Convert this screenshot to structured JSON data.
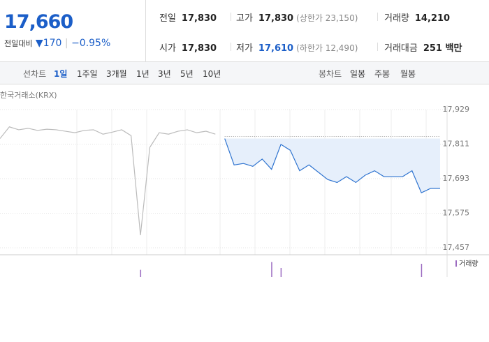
{
  "header": {
    "price": "17,660",
    "change_label": "전일대비",
    "change": "170",
    "change_rate": "−0.95%"
  },
  "stats": [
    {
      "label": "전일",
      "value": "17,830"
    },
    {
      "label": "고가",
      "value": "17,830",
      "note": "(상한가 23,150)"
    },
    {
      "label": "거래량",
      "value": "14,210"
    },
    {
      "label": "시가",
      "value": "17,830"
    },
    {
      "label": "저가",
      "value": "17,610",
      "note": "(하한가 12,490)"
    },
    {
      "label": "거래대금",
      "value": "251 백만"
    }
  ],
  "tabs": {
    "line_label": "선차트",
    "line": [
      "1일",
      "1주일",
      "3개월",
      "1년",
      "3년",
      "5년",
      "10년"
    ],
    "candle_label": "봉차트",
    "candle": [
      "일봉",
      "주봉",
      "월봉"
    ]
  },
  "chart_data": {
    "type": "line",
    "source": "한국거래소(KRX)",
    "categories": [
      null,
      null,
      null,
      null,
      null,
      null,
      null,
      null,
      null,
      null,
      null,
      null,
      null,
      null,
      null,
      null,
      null,
      null,
      null,
      null,
      null,
      null,
      null,
      null,
      null,
      null,
      null,
      null,
      null,
      null,
      null,
      null,
      null,
      null,
      null,
      null,
      null,
      null,
      null,
      null,
      null,
      null,
      null,
      null,
      null,
      null,
      null,
      null
    ],
    "series": [
      {
        "color": "#bbbbbb",
        "values": [
          17830,
          17870,
          17860,
          17865,
          17858,
          17862,
          17860,
          17855,
          17850,
          17858,
          17860,
          17845,
          17852,
          17860,
          17840,
          17500,
          17800,
          17850,
          17845,
          17855,
          17860,
          17850,
          17855,
          17845,
          null,
          null,
          null,
          null,
          null,
          null,
          null,
          null,
          null,
          null,
          null,
          null,
          null,
          null,
          null,
          null,
          null,
          null,
          null,
          null,
          null,
          null,
          null,
          null
        ]
      },
      {
        "color": "#2f74d0",
        "values": [
          null,
          null,
          null,
          null,
          null,
          null,
          null,
          null,
          null,
          null,
          null,
          null,
          null,
          null,
          null,
          null,
          null,
          null,
          null,
          null,
          null,
          null,
          null,
          null,
          17830,
          17740,
          17745,
          17735,
          17760,
          17725,
          17810,
          17790,
          17720,
          17740,
          17715,
          17690,
          17680,
          17700,
          17680,
          17705,
          17720,
          17700,
          17700,
          17700,
          17720,
          17645,
          17660,
          17660
        ]
      }
    ],
    "volume": {
      "name": "거래량",
      "color": "#9b6bc0",
      "ylim": [
        0,
        30
      ],
      "values": [
        0,
        0,
        0,
        0,
        0,
        0,
        0,
        0,
        0,
        0,
        0,
        0,
        0,
        0,
        0,
        12,
        0,
        0,
        0,
        0,
        0,
        0,
        0,
        0,
        0,
        0,
        0,
        0,
        0,
        25,
        15,
        0,
        0,
        0,
        0,
        0,
        0,
        0,
        0,
        0,
        0,
        0,
        0,
        0,
        0,
        22,
        0,
        0
      ]
    },
    "ylim": [
      17457,
      17929
    ],
    "yticks": [
      {
        "value": 17929,
        "label": "17,929"
      },
      {
        "value": 17811,
        "label": "17,811"
      },
      {
        "value": 17693,
        "label": "17,693"
      },
      {
        "value": 17575,
        "label": "17,575"
      },
      {
        "value": 17457,
        "label": "17,457"
      }
    ],
    "grid": true
  }
}
